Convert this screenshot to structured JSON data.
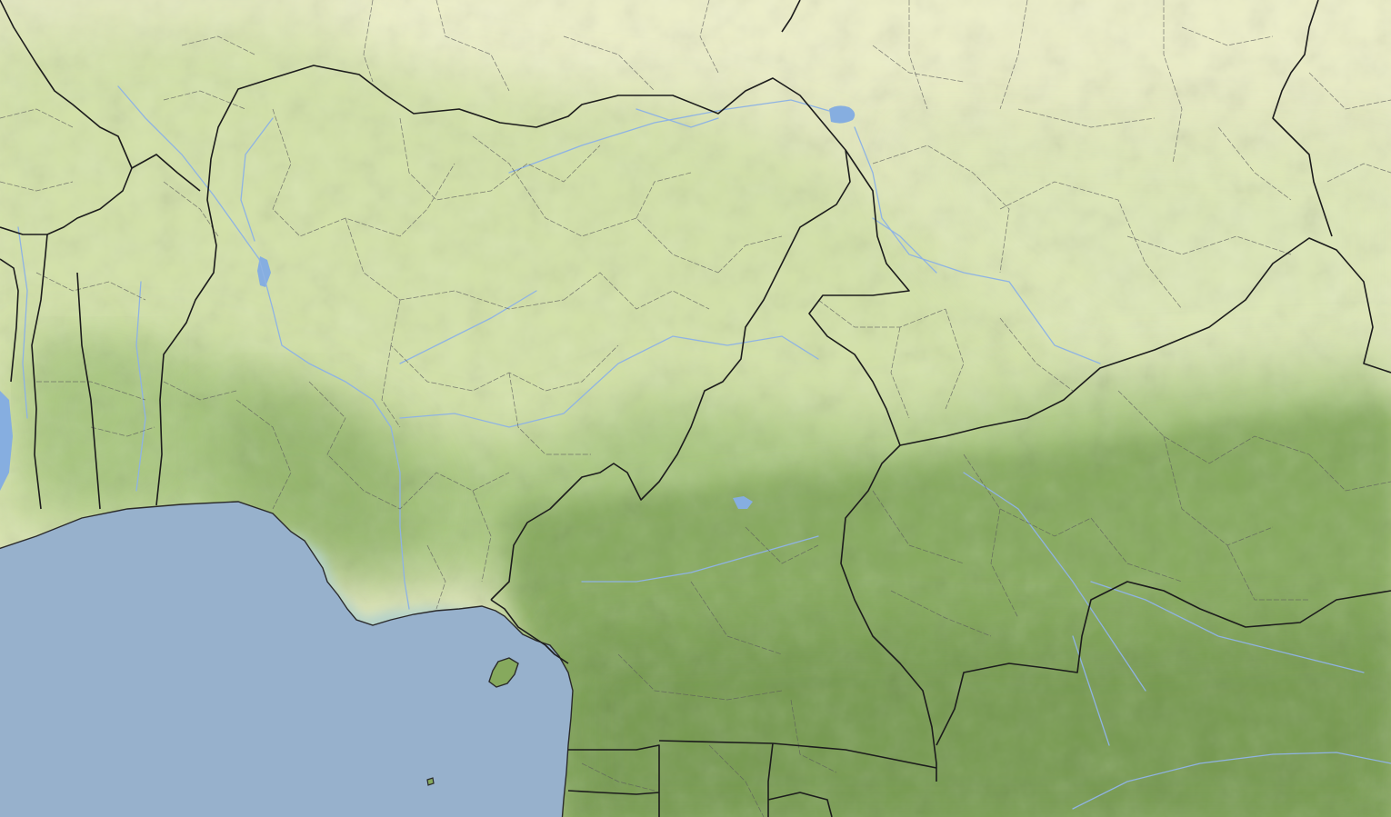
{
  "map": {
    "kind": "physical relief basemap",
    "labels": [],
    "colors": {
      "ocean": "#97b1cc",
      "coast_shallow": "#b4d2c9",
      "desert": "#eceec8",
      "sahel": "#e4e8bf",
      "savanna": "#d3e1a8",
      "savanna_light": "#dbe6b4",
      "woodland": "#a9c67f",
      "forest": "#86a95d",
      "forest_dark": "#76994f",
      "lake": "#86aee0",
      "river": "#8fb3e3",
      "country_border": "#1c1c1c",
      "admin_border": "#5b5b5b",
      "coastline": "#2a2a2a"
    }
  }
}
